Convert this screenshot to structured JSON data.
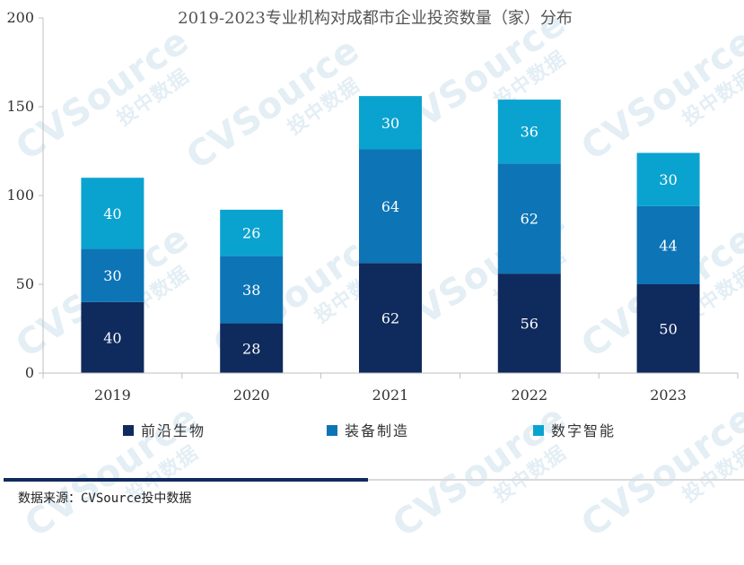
{
  "chart_data": {
    "type": "bar",
    "stacked": true,
    "title": "2019-2023专业机构对成都市企业投资数量（家）分布",
    "categories": [
      "2019",
      "2020",
      "2021",
      "2022",
      "2023"
    ],
    "series": [
      {
        "name": "前沿生物",
        "color": "#0f2a5c",
        "values": [
          40,
          28,
          62,
          56,
          50
        ]
      },
      {
        "name": "装备制造",
        "color": "#0d74b6",
        "values": [
          30,
          38,
          64,
          62,
          44
        ]
      },
      {
        "name": "数字智能",
        "color": "#0aa3cf",
        "values": [
          40,
          26,
          30,
          36,
          30
        ]
      }
    ],
    "ylim": [
      0,
      200
    ],
    "yticks": [
      0,
      50,
      100,
      150,
      200
    ],
    "xlabel": "",
    "ylabel": "",
    "legend": "bottom"
  },
  "watermark": {
    "brand": "CVSource",
    "sub": "投中数据"
  },
  "footer": {
    "source": "数据来源：CVSource投中数据"
  }
}
